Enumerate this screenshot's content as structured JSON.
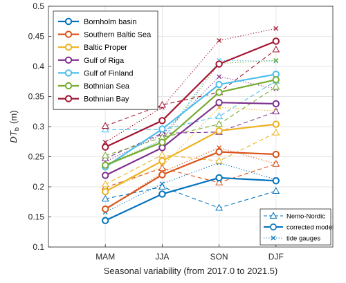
{
  "chart_data": {
    "type": "line",
    "xlabel": "Seasonal variability (from 2017.0 to 2021.5)",
    "ylabel_main": "DT",
    "ylabel_sub": "b",
    "ylabel_unit": "(m)",
    "categories": [
      "MAM",
      "JJA",
      "SON",
      "DJF"
    ],
    "ylim": [
      0.1,
      0.5
    ],
    "yticks": [
      "0.1",
      "0.15",
      "0.2",
      "0.25",
      "0.3",
      "0.35",
      "0.4",
      "0.45",
      "0.5"
    ],
    "grid": true,
    "legend_position": "top-left",
    "series": [
      {
        "name": "Bornholm basin",
        "color": "#0072BD",
        "corrected": [
          0.144,
          0.188,
          0.215,
          0.21
        ],
        "nemo": [
          0.18,
          0.2,
          0.165,
          0.193
        ],
        "tide": [
          0.158,
          0.205,
          0.24,
          0.212
        ]
      },
      {
        "name": "Southern Baltic Sea",
        "color": "#D95319",
        "corrected": [
          0.163,
          0.22,
          0.258,
          0.254
        ],
        "nemo": [
          0.199,
          0.231,
          0.207,
          0.238
        ],
        "tide": [
          0.162,
          0.224,
          0.265,
          0.238
        ]
      },
      {
        "name": "Baltic Proper",
        "color": "#EDB120",
        "corrected": [
          0.192,
          0.243,
          0.293,
          0.304
        ],
        "nemo": [
          0.204,
          0.253,
          0.243,
          0.29
        ],
        "tide": [
          0.193,
          0.234,
          0.332,
          0.326
        ]
      },
      {
        "name": "Gulf of Riga",
        "color": "#7E2F8E",
        "corrected": [
          0.219,
          0.265,
          0.34,
          0.338
        ],
        "nemo": [
          0.247,
          0.289,
          0.291,
          0.325
        ],
        "tide": [
          0.242,
          0.287,
          0.383,
          0.363
        ]
      },
      {
        "name": "Gulf of Finland",
        "color": "#4DBEEE",
        "corrected": [
          0.233,
          0.296,
          0.37,
          0.387
        ],
        "nemo": [
          0.295,
          0.295,
          0.317,
          0.376
        ],
        "tide": [
          0.233,
          0.278,
          0.41,
          0.409
        ]
      },
      {
        "name": "Bothnian Sea",
        "color": "#77AC30",
        "corrected": [
          0.236,
          0.274,
          0.357,
          0.378
        ],
        "nemo": [
          0.252,
          0.282,
          0.304,
          0.366
        ],
        "tide": [
          0.237,
          0.277,
          0.405,
          0.41
        ]
      },
      {
        "name": "Bothnian Bay",
        "color": "#A2142F",
        "corrected": [
          0.266,
          0.31,
          0.404,
          0.442
        ],
        "nemo": [
          0.301,
          0.336,
          0.357,
          0.428
        ],
        "tide": [
          0.274,
          0.332,
          0.443,
          0.463
        ]
      }
    ],
    "legend2": [
      {
        "label": "Nemo-Nordic",
        "style": "dashed",
        "marker": "triangle"
      },
      {
        "label": "corrected model",
        "style": "solid",
        "marker": "circle"
      },
      {
        "label": "tide gauges",
        "style": "dotted",
        "marker": "x"
      }
    ]
  }
}
